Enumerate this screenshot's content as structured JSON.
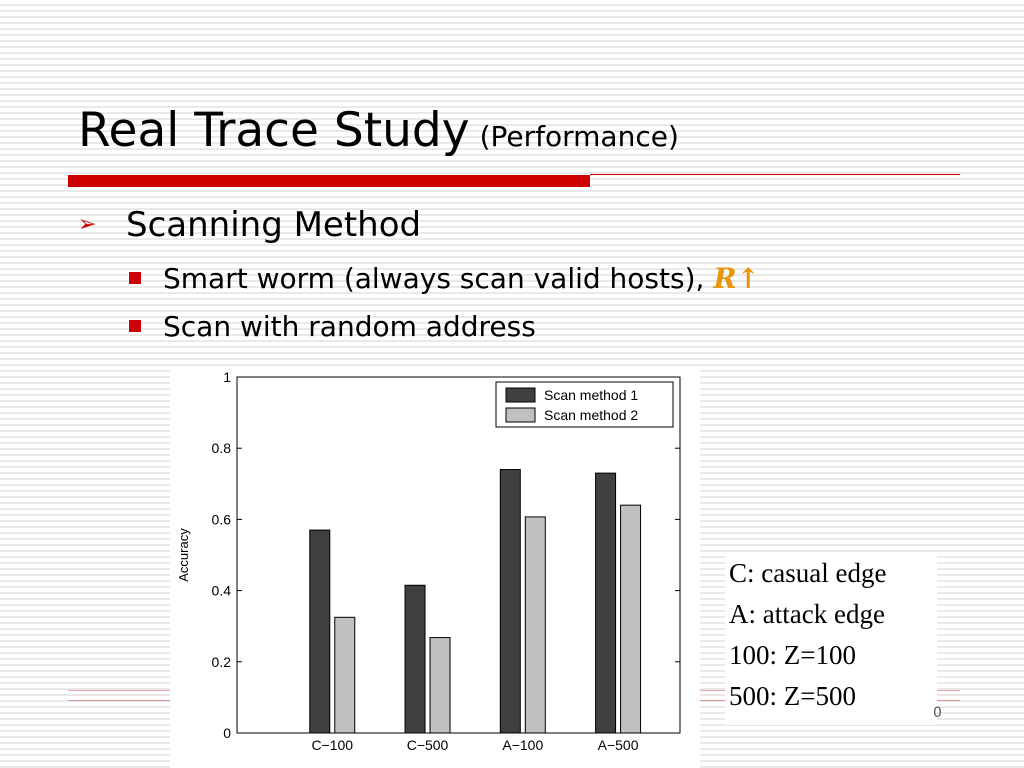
{
  "slide": {
    "title": "Real Trace Study",
    "subtitle": "(Performance)",
    "bullet_arrow": "➢",
    "bullet1": "Scanning Method",
    "sub1_text": "Smart worm (always scan valid hosts), ",
    "sub1_emph": "R",
    "sub1_arrow": "↑",
    "sub2_text": "Scan with random address",
    "legend_notes": [
      "C: casual edge",
      "A: attack edge",
      "100: Z=100",
      "500: Z=500"
    ],
    "page_number": "0"
  },
  "colors": {
    "accent_red": "#cc0000",
    "emphasis_orange": "#e8960c",
    "series_1": "#404040",
    "series_2": "#c0c0c0"
  },
  "chart_data": {
    "type": "bar",
    "categories": [
      "C−100",
      "C−500",
      "A−100",
      "A−500"
    ],
    "series": [
      {
        "name": "Scan method 1",
        "values": [
          0.57,
          0.415,
          0.74,
          0.73
        ]
      },
      {
        "name": "Scan method 2",
        "values": [
          0.325,
          0.268,
          0.607,
          0.64
        ]
      }
    ],
    "xlabel": "",
    "ylabel": "Accuracy",
    "ylim": [
      0,
      1
    ],
    "yticks": [
      0,
      0.2,
      0.4,
      0.6,
      0.8,
      1
    ],
    "ytick_labels": [
      "0",
      "0.2",
      "0.4",
      "0.6",
      "0.8",
      "1"
    ],
    "grid": false,
    "legend": "top-right"
  }
}
